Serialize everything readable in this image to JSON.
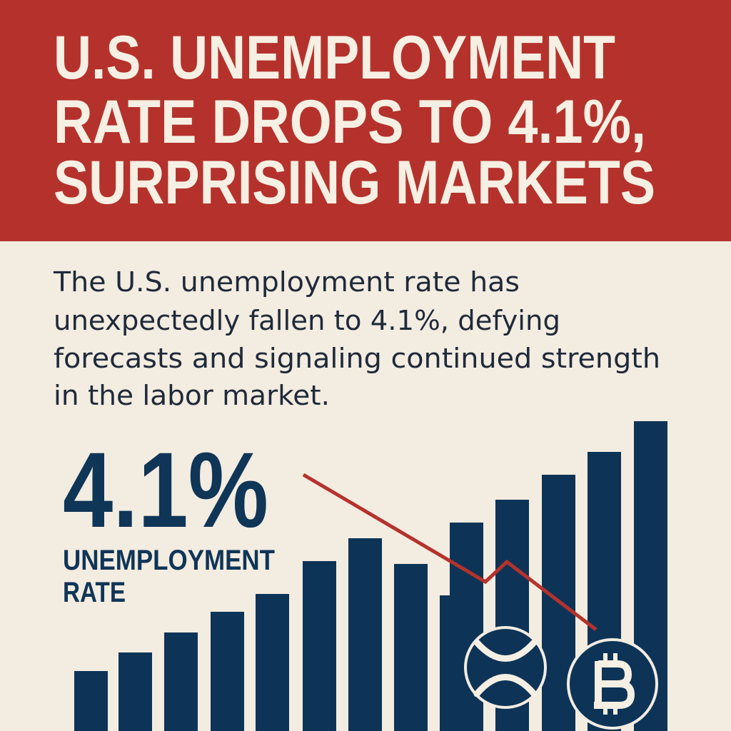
{
  "header": {
    "title_lines": [
      "U.S. UNEMPLOYMENT",
      "RATE DROPS TO 4.1%,",
      "SURPRISING MARKETS"
    ]
  },
  "body": {
    "lines": [
      "The U.S. unemployment rate has",
      "unexpectedly fallen to 4.1%, defying",
      "forecasts and signaling continued strength",
      "in the labor market."
    ]
  },
  "stat": {
    "value": "4.1%",
    "label_lines": [
      "UNEMPLOYMENT",
      "RATE"
    ]
  }
}
